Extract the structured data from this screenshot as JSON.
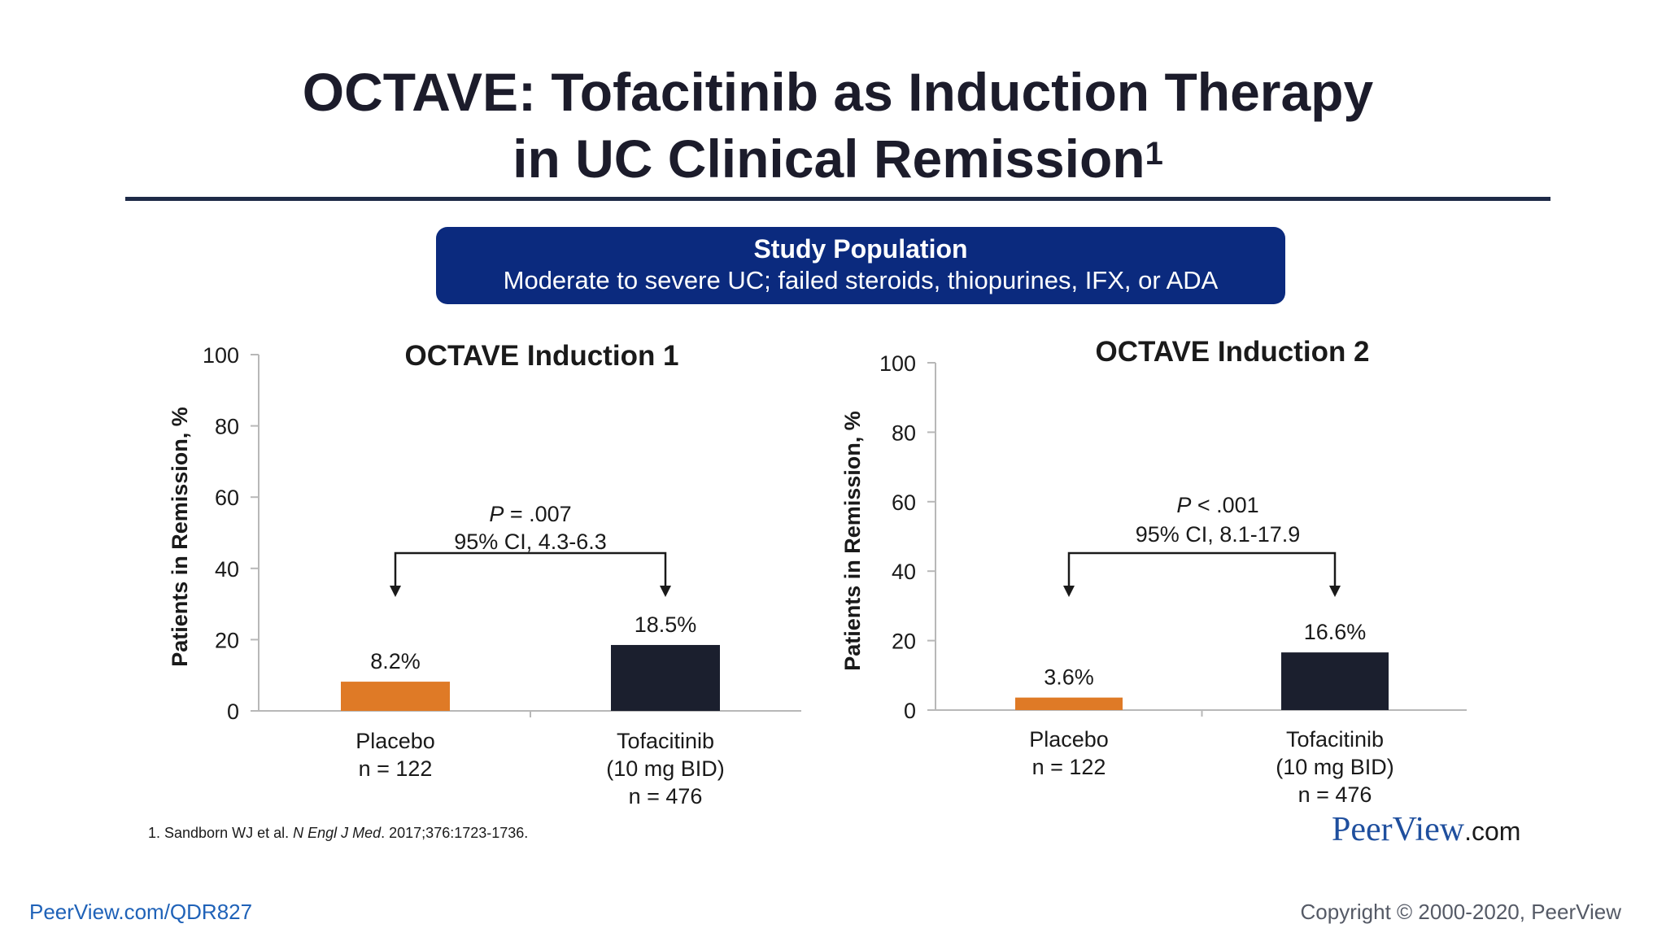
{
  "slide": {
    "title_line1": "OCTAVE: Tofacitinib as Induction Therapy",
    "title_line2": "in UC Clinical Remission",
    "title_ref": "1",
    "population_title": "Study Population",
    "population_desc": "Moderate to severe UC; failed steroids, thiopurines, IFX, or ADA",
    "footnote_pre": "1. Sandborn WJ et al. ",
    "footnote_journal": "N Engl J Med",
    "footnote_post": ". 2017;376:1723-1736.",
    "brand_peer": "Peer",
    "brand_view": "View",
    "brand_dotcom": ".com",
    "bottom_link": "PeerView.com/QDR827",
    "copyright": "Copyright © 2000-2020, PeerView"
  },
  "colors": {
    "placebo": "#df7a26",
    "tofacitinib": "#1b1f2e",
    "axis": "#b8b8b8",
    "bracket": "#1a1a1a"
  },
  "chart_data": [
    {
      "type": "bar",
      "title": "OCTAVE Induction 1",
      "ylabel": "Patients in Remission, %",
      "ylim": [
        0,
        100
      ],
      "yticks": [
        0,
        20,
        40,
        60,
        80,
        100
      ],
      "categories": [
        {
          "name": "Placebo",
          "lines": [
            "Placebo",
            "n = 122"
          ]
        },
        {
          "name": "Tofacitinib",
          "lines": [
            "Tofacitinib",
            "(10 mg BID)",
            "n = 476"
          ]
        }
      ],
      "values": [
        8.2,
        18.5
      ],
      "value_labels": [
        "8.2%",
        "18.5%"
      ],
      "comparison": {
        "p_prefix": "P",
        "p_rest": " = .007",
        "ci": "95% CI, 4.3-6.3"
      }
    },
    {
      "type": "bar",
      "title": "OCTAVE Induction 2",
      "ylabel": "Patients in Remission, %",
      "ylim": [
        0,
        100
      ],
      "yticks": [
        0,
        20,
        40,
        60,
        80,
        100
      ],
      "categories": [
        {
          "name": "Placebo",
          "lines": [
            "Placebo",
            "n = 122"
          ]
        },
        {
          "name": "Tofacitinib",
          "lines": [
            "Tofacitinib",
            "(10 mg BID)",
            "n = 476"
          ]
        }
      ],
      "values": [
        3.6,
        16.6
      ],
      "value_labels": [
        "3.6%",
        "16.6%"
      ],
      "comparison": {
        "p_prefix": "P",
        "p_rest": " < .001",
        "ci": "95% CI, 8.1-17.9"
      }
    }
  ]
}
